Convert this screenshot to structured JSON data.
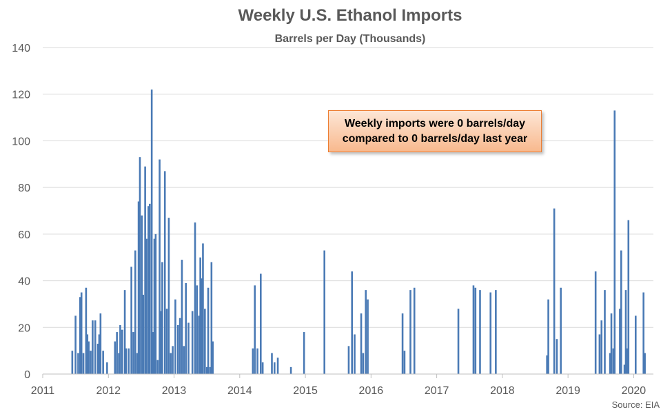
{
  "chart_data": {
    "type": "bar",
    "title": "Weekly U.S. Ethanol Imports",
    "subtitle": "Barrels per Day (Thousands)",
    "xlabel": "",
    "ylabel": "",
    "ylim": [
      0,
      140
    ],
    "yticks": [
      0,
      20,
      40,
      60,
      80,
      100,
      120,
      140
    ],
    "xlim": [
      2011,
      2020.3
    ],
    "xticks": [
      "2011",
      "2012",
      "2013",
      "2014",
      "2015",
      "2016",
      "2017",
      "2018",
      "2019",
      "2020"
    ],
    "grid": "horizontal",
    "bar_color": "#4a7ab5",
    "points": [
      {
        "x": 2011.45,
        "y": 10
      },
      {
        "x": 2011.5,
        "y": 25
      },
      {
        "x": 2011.54,
        "y": 9
      },
      {
        "x": 2011.57,
        "y": 33
      },
      {
        "x": 2011.59,
        "y": 35
      },
      {
        "x": 2011.62,
        "y": 9
      },
      {
        "x": 2011.66,
        "y": 37
      },
      {
        "x": 2011.68,
        "y": 17
      },
      {
        "x": 2011.7,
        "y": 14
      },
      {
        "x": 2011.73,
        "y": 10
      },
      {
        "x": 2011.76,
        "y": 23
      },
      {
        "x": 2011.8,
        "y": 23
      },
      {
        "x": 2011.84,
        "y": 13
      },
      {
        "x": 2011.86,
        "y": 17
      },
      {
        "x": 2011.88,
        "y": 26
      },
      {
        "x": 2011.92,
        "y": 10
      },
      {
        "x": 2011.98,
        "y": 5
      },
      {
        "x": 2012.1,
        "y": 14
      },
      {
        "x": 2012.13,
        "y": 18
      },
      {
        "x": 2012.16,
        "y": 9
      },
      {
        "x": 2012.18,
        "y": 21
      },
      {
        "x": 2012.21,
        "y": 19
      },
      {
        "x": 2012.25,
        "y": 36
      },
      {
        "x": 2012.27,
        "y": 11
      },
      {
        "x": 2012.31,
        "y": 11
      },
      {
        "x": 2012.35,
        "y": 46
      },
      {
        "x": 2012.38,
        "y": 18
      },
      {
        "x": 2012.41,
        "y": 53
      },
      {
        "x": 2012.44,
        "y": 9
      },
      {
        "x": 2012.46,
        "y": 74
      },
      {
        "x": 2012.48,
        "y": 93
      },
      {
        "x": 2012.51,
        "y": 68
      },
      {
        "x": 2012.53,
        "y": 34
      },
      {
        "x": 2012.56,
        "y": 89
      },
      {
        "x": 2012.58,
        "y": 58
      },
      {
        "x": 2012.61,
        "y": 72
      },
      {
        "x": 2012.63,
        "y": 73
      },
      {
        "x": 2012.66,
        "y": 122
      },
      {
        "x": 2012.68,
        "y": 18
      },
      {
        "x": 2012.7,
        "y": 58
      },
      {
        "x": 2012.72,
        "y": 60
      },
      {
        "x": 2012.75,
        "y": 6
      },
      {
        "x": 2012.78,
        "y": 92
      },
      {
        "x": 2012.8,
        "y": 27
      },
      {
        "x": 2012.82,
        "y": 48
      },
      {
        "x": 2012.86,
        "y": 87
      },
      {
        "x": 2012.89,
        "y": 28
      },
      {
        "x": 2012.92,
        "y": 67
      },
      {
        "x": 2012.95,
        "y": 9
      },
      {
        "x": 2012.98,
        "y": 12
      },
      {
        "x": 2013.02,
        "y": 32
      },
      {
        "x": 2013.06,
        "y": 21
      },
      {
        "x": 2013.09,
        "y": 24
      },
      {
        "x": 2013.12,
        "y": 49
      },
      {
        "x": 2013.15,
        "y": 12
      },
      {
        "x": 2013.18,
        "y": 39
      },
      {
        "x": 2013.22,
        "y": 22
      },
      {
        "x": 2013.28,
        "y": 27
      },
      {
        "x": 2013.32,
        "y": 65
      },
      {
        "x": 2013.35,
        "y": 38
      },
      {
        "x": 2013.38,
        "y": 25
      },
      {
        "x": 2013.4,
        "y": 50
      },
      {
        "x": 2013.42,
        "y": 41
      },
      {
        "x": 2013.44,
        "y": 56
      },
      {
        "x": 2013.47,
        "y": 28
      },
      {
        "x": 2013.5,
        "y": 3
      },
      {
        "x": 2013.52,
        "y": 37
      },
      {
        "x": 2013.55,
        "y": 3
      },
      {
        "x": 2013.57,
        "y": 48
      },
      {
        "x": 2013.59,
        "y": 14
      },
      {
        "x": 2014.2,
        "y": 11
      },
      {
        "x": 2014.23,
        "y": 38
      },
      {
        "x": 2014.27,
        "y": 11
      },
      {
        "x": 2014.32,
        "y": 43
      },
      {
        "x": 2014.35,
        "y": 5
      },
      {
        "x": 2014.49,
        "y": 9
      },
      {
        "x": 2014.53,
        "y": 5
      },
      {
        "x": 2014.58,
        "y": 7
      },
      {
        "x": 2014.78,
        "y": 3
      },
      {
        "x": 2014.98,
        "y": 18
      },
      {
        "x": 2015.29,
        "y": 53
      },
      {
        "x": 2015.66,
        "y": 12
      },
      {
        "x": 2015.71,
        "y": 44
      },
      {
        "x": 2015.75,
        "y": 17
      },
      {
        "x": 2015.85,
        "y": 26
      },
      {
        "x": 2015.88,
        "y": 9
      },
      {
        "x": 2015.92,
        "y": 36
      },
      {
        "x": 2015.95,
        "y": 32
      },
      {
        "x": 2016.48,
        "y": 26
      },
      {
        "x": 2016.51,
        "y": 10
      },
      {
        "x": 2016.6,
        "y": 36
      },
      {
        "x": 2016.66,
        "y": 37
      },
      {
        "x": 2017.33,
        "y": 28
      },
      {
        "x": 2017.56,
        "y": 38
      },
      {
        "x": 2017.59,
        "y": 37
      },
      {
        "x": 2017.66,
        "y": 36
      },
      {
        "x": 2017.82,
        "y": 35
      },
      {
        "x": 2017.9,
        "y": 36
      },
      {
        "x": 2018.68,
        "y": 8
      },
      {
        "x": 2018.7,
        "y": 32
      },
      {
        "x": 2018.79,
        "y": 71
      },
      {
        "x": 2018.83,
        "y": 15
      },
      {
        "x": 2018.89,
        "y": 37
      },
      {
        "x": 2019.42,
        "y": 44
      },
      {
        "x": 2019.48,
        "y": 17
      },
      {
        "x": 2019.51,
        "y": 23
      },
      {
        "x": 2019.56,
        "y": 36
      },
      {
        "x": 2019.64,
        "y": 9
      },
      {
        "x": 2019.66,
        "y": 26
      },
      {
        "x": 2019.69,
        "y": 11
      },
      {
        "x": 2019.71,
        "y": 113
      },
      {
        "x": 2019.79,
        "y": 28
      },
      {
        "x": 2019.81,
        "y": 53
      },
      {
        "x": 2019.86,
        "y": 4
      },
      {
        "x": 2019.88,
        "y": 36
      },
      {
        "x": 2019.9,
        "y": 11
      },
      {
        "x": 2019.92,
        "y": 66
      },
      {
        "x": 2020.03,
        "y": 25
      },
      {
        "x": 2020.15,
        "y": 35
      },
      {
        "x": 2020.17,
        "y": 9
      }
    ],
    "annotation": "Weekly imports were 0 barrels/day compared to 0 barrels/day last year",
    "source": "Source: EIA"
  },
  "annotation": {
    "line1": "Weekly imports were 0 barrels/day",
    "line2": "compared to 0 barrels/day last year"
  },
  "source": "Source: EIA",
  "colors": {
    "bar": "#4a7ab5",
    "grid": "#d9d9d9",
    "callout_border": "#ed7d31"
  }
}
